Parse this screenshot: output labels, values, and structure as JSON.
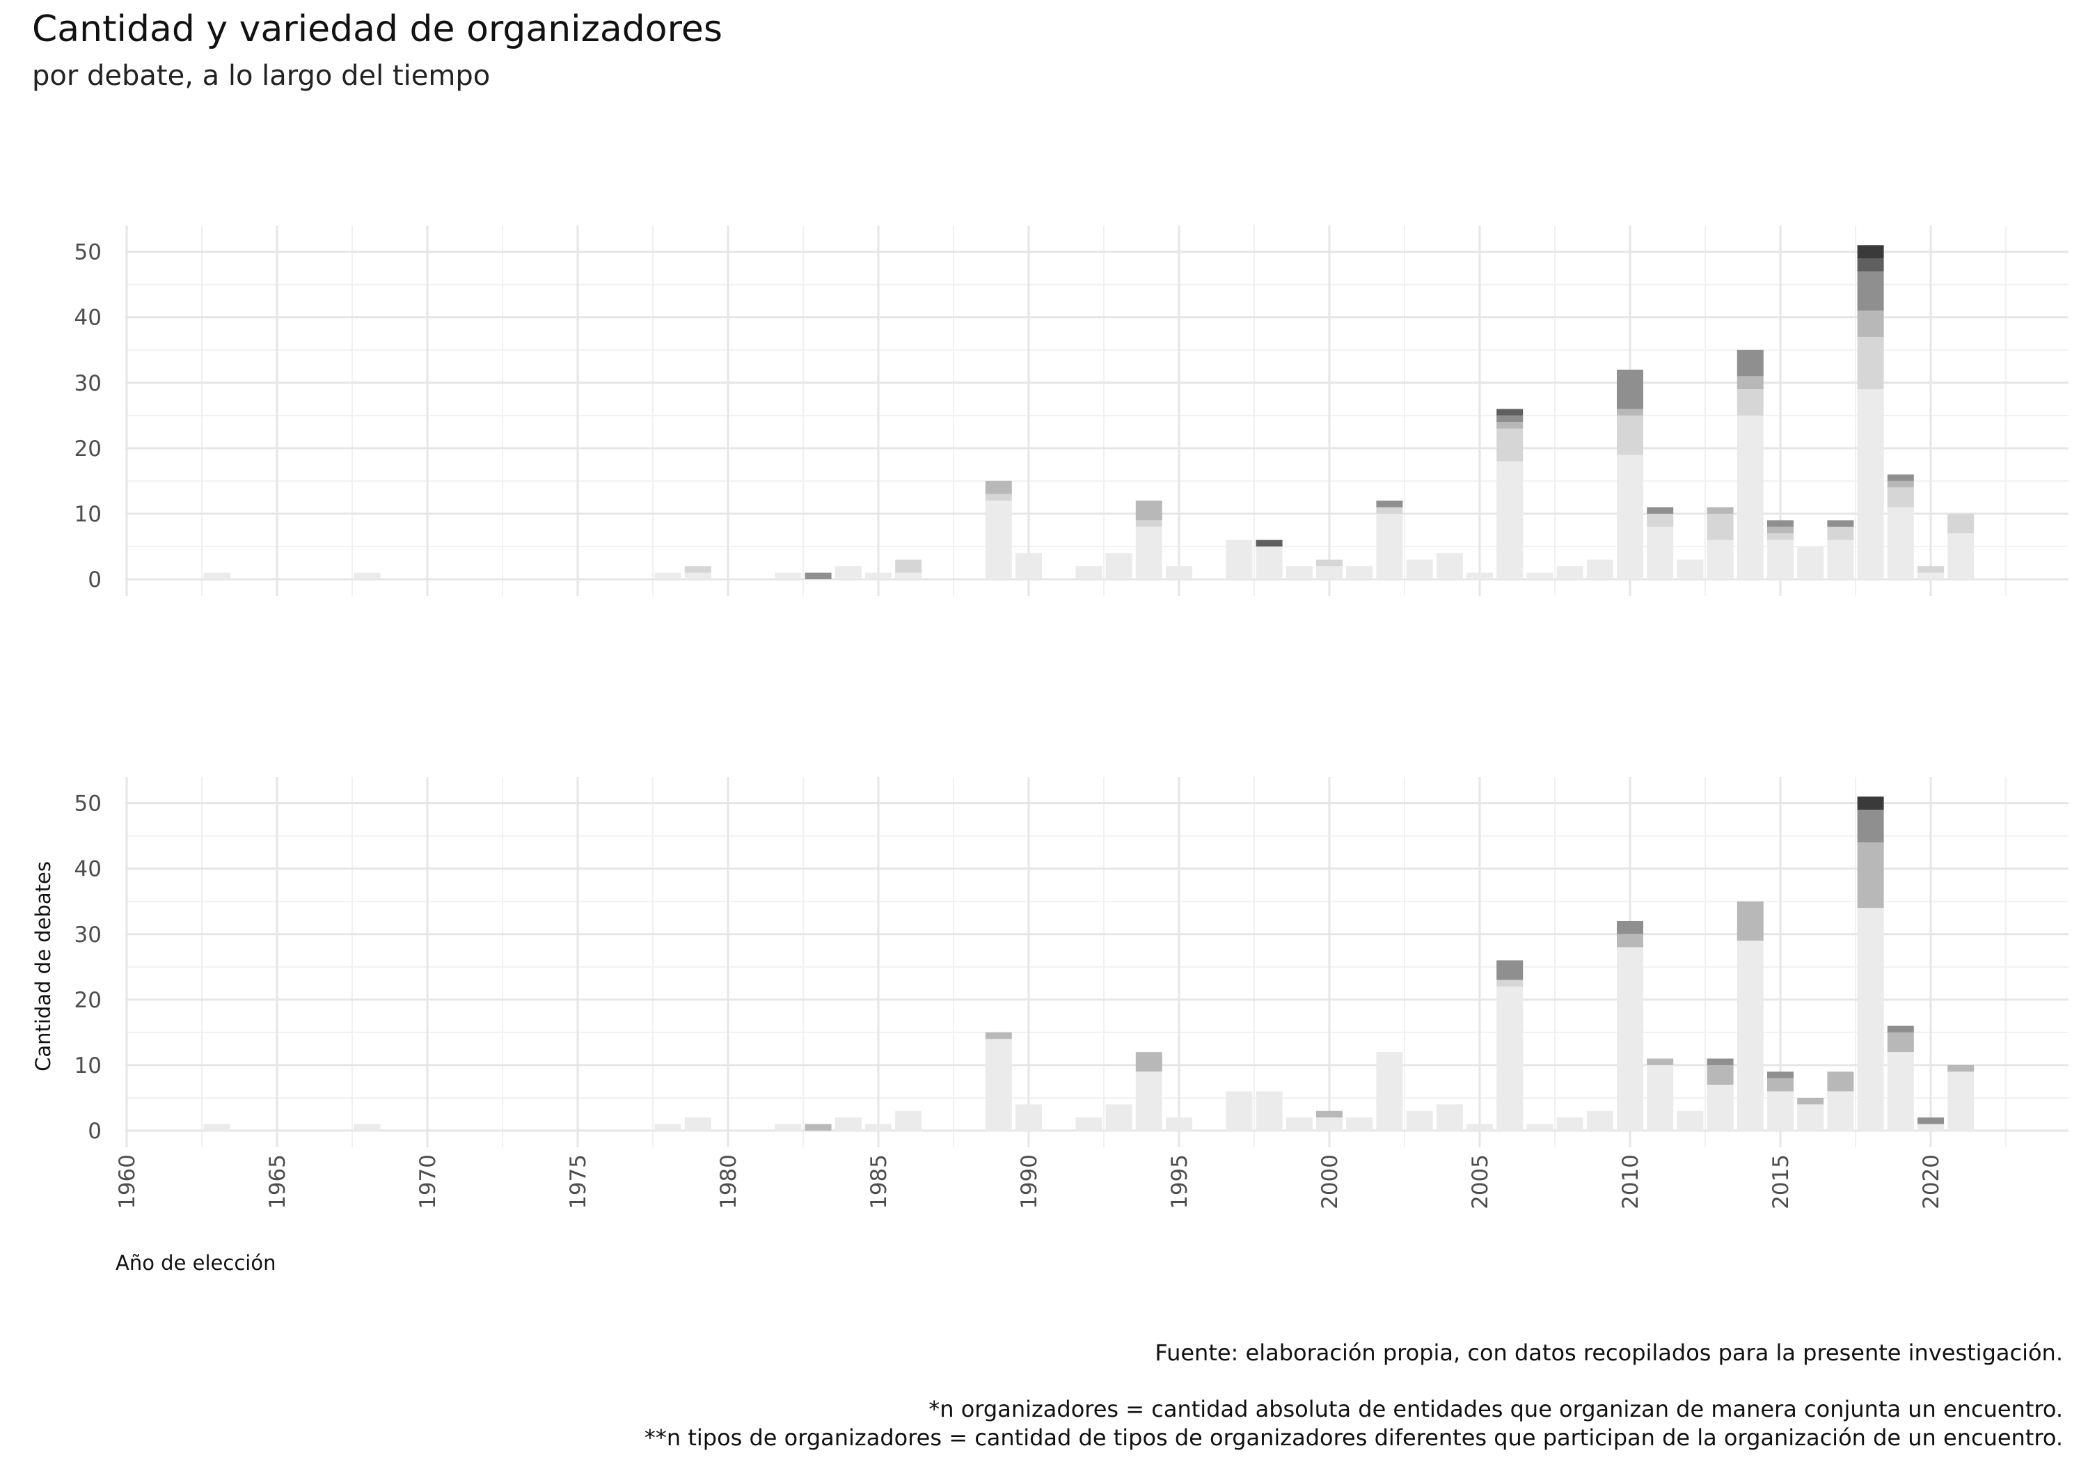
{
  "title": "Cantidad y variedad de organizadores",
  "subtitle": "por debate, a lo largo del tiempo",
  "captions": {
    "source": "Fuente: elaboración propia, con datos recopilados para la presente investigación.",
    "note1": "*n organizadores = cantidad absoluta de entidades que organizan de manera conjunta un encuentro.",
    "note2": "**n tipos de organizadores = cantidad de tipos de organizadores diferentes que participan de la organización de un encuentro."
  },
  "colors": {
    "grid_major": "#e6e6e6",
    "grid_minor": "#f1f1f1",
    "axis_text": "#4d4d4d",
    "level_fill": [
      "#ebebeb",
      "#d6d6d6",
      "#b8b8b8",
      "#8f8f8f",
      "#5f5f5f",
      "#3a3a3a"
    ]
  },
  "chart_data": [
    {
      "type": "bar",
      "stacked": true,
      "panel": "top",
      "description_basis": "stacked by number of organizers per debate",
      "xlim": [
        1960,
        2024
      ],
      "ylim": [
        0,
        54
      ],
      "yticks": [
        0,
        10,
        20,
        30,
        40,
        50
      ],
      "xlabel": "",
      "ylabel": "",
      "bars": [
        {
          "x": 1963,
          "segments": [
            1
          ]
        },
        {
          "x": 1968,
          "segments": [
            1
          ]
        },
        {
          "x": 1978,
          "segments": [
            1
          ]
        },
        {
          "x": 1979,
          "segments": [
            1,
            1
          ]
        },
        {
          "x": 1982,
          "segments": [
            1
          ]
        },
        {
          "x": 1983,
          "segments": [
            0,
            0,
            0,
            1
          ]
        },
        {
          "x": 1984,
          "segments": [
            2
          ]
        },
        {
          "x": 1985,
          "segments": [
            1
          ]
        },
        {
          "x": 1986,
          "segments": [
            1,
            2
          ]
        },
        {
          "x": 1989,
          "segments": [
            12,
            1,
            2
          ]
        },
        {
          "x": 1990,
          "segments": [
            4
          ]
        },
        {
          "x": 1992,
          "segments": [
            2
          ]
        },
        {
          "x": 1993,
          "segments": [
            4
          ]
        },
        {
          "x": 1994,
          "segments": [
            8,
            1,
            3
          ]
        },
        {
          "x": 1995,
          "segments": [
            2
          ]
        },
        {
          "x": 1997,
          "segments": [
            6
          ]
        },
        {
          "x": 1998,
          "segments": [
            5,
            0,
            0,
            0,
            1
          ]
        },
        {
          "x": 1999,
          "segments": [
            2
          ]
        },
        {
          "x": 2000,
          "segments": [
            2,
            1
          ]
        },
        {
          "x": 2001,
          "segments": [
            2
          ]
        },
        {
          "x": 2002,
          "segments": [
            10,
            1,
            0,
            1
          ]
        },
        {
          "x": 2003,
          "segments": [
            3
          ]
        },
        {
          "x": 2004,
          "segments": [
            4
          ]
        },
        {
          "x": 2005,
          "segments": [
            1
          ]
        },
        {
          "x": 2006,
          "segments": [
            18,
            5,
            1,
            1,
            1
          ]
        },
        {
          "x": 2007,
          "segments": [
            1
          ]
        },
        {
          "x": 2008,
          "segments": [
            2
          ]
        },
        {
          "x": 2009,
          "segments": [
            3
          ]
        },
        {
          "x": 2010,
          "segments": [
            19,
            6,
            1,
            6
          ]
        },
        {
          "x": 2011,
          "segments": [
            8,
            2,
            0,
            1
          ]
        },
        {
          "x": 2012,
          "segments": [
            3
          ]
        },
        {
          "x": 2013,
          "segments": [
            6,
            4,
            1
          ]
        },
        {
          "x": 2014,
          "segments": [
            25,
            4,
            2,
            4
          ]
        },
        {
          "x": 2015,
          "segments": [
            6,
            1,
            1,
            1
          ]
        },
        {
          "x": 2016,
          "segments": [
            5
          ]
        },
        {
          "x": 2017,
          "segments": [
            6,
            2,
            0,
            1
          ]
        },
        {
          "x": 2018,
          "segments": [
            29,
            8,
            4,
            6,
            2,
            2
          ]
        },
        {
          "x": 2019,
          "segments": [
            11,
            3,
            1,
            1
          ]
        },
        {
          "x": 2020,
          "segments": [
            1,
            1
          ]
        },
        {
          "x": 2021,
          "segments": [
            7,
            3
          ]
        }
      ]
    },
    {
      "type": "bar",
      "stacked": true,
      "panel": "bottom",
      "description_basis": "stacked by number of organizer types per debate",
      "xlim": [
        1960,
        2024
      ],
      "ylim": [
        0,
        54
      ],
      "yticks": [
        0,
        10,
        20,
        30,
        40,
        50
      ],
      "xticks": [
        1960,
        1965,
        1970,
        1975,
        1980,
        1985,
        1990,
        1995,
        2000,
        2005,
        2010,
        2015,
        2020
      ],
      "xlabel": "Año de elección",
      "ylabel": "Cantidad de debates",
      "bars": [
        {
          "x": 1963,
          "segments": [
            1
          ]
        },
        {
          "x": 1968,
          "segments": [
            1
          ]
        },
        {
          "x": 1978,
          "segments": [
            1
          ]
        },
        {
          "x": 1979,
          "segments": [
            2
          ]
        },
        {
          "x": 1982,
          "segments": [
            1
          ]
        },
        {
          "x": 1983,
          "segments": [
            0,
            0,
            1
          ]
        },
        {
          "x": 1984,
          "segments": [
            2
          ]
        },
        {
          "x": 1985,
          "segments": [
            1
          ]
        },
        {
          "x": 1986,
          "segments": [
            3
          ]
        },
        {
          "x": 1989,
          "segments": [
            14,
            0,
            1
          ]
        },
        {
          "x": 1990,
          "segments": [
            4
          ]
        },
        {
          "x": 1992,
          "segments": [
            2
          ]
        },
        {
          "x": 1993,
          "segments": [
            4
          ]
        },
        {
          "x": 1994,
          "segments": [
            9,
            0,
            3
          ]
        },
        {
          "x": 1995,
          "segments": [
            2
          ]
        },
        {
          "x": 1997,
          "segments": [
            6
          ]
        },
        {
          "x": 1998,
          "segments": [
            6
          ]
        },
        {
          "x": 1999,
          "segments": [
            2
          ]
        },
        {
          "x": 2000,
          "segments": [
            2,
            0,
            1
          ]
        },
        {
          "x": 2001,
          "segments": [
            2
          ]
        },
        {
          "x": 2002,
          "segments": [
            12
          ]
        },
        {
          "x": 2003,
          "segments": [
            3
          ]
        },
        {
          "x": 2004,
          "segments": [
            4
          ]
        },
        {
          "x": 2005,
          "segments": [
            1
          ]
        },
        {
          "x": 2006,
          "segments": [
            22,
            1,
            0,
            3
          ]
        },
        {
          "x": 2007,
          "segments": [
            1
          ]
        },
        {
          "x": 2008,
          "segments": [
            2
          ]
        },
        {
          "x": 2009,
          "segments": [
            3
          ]
        },
        {
          "x": 2010,
          "segments": [
            28,
            0,
            2,
            2
          ]
        },
        {
          "x": 2011,
          "segments": [
            10,
            0,
            1
          ]
        },
        {
          "x": 2012,
          "segments": [
            3
          ]
        },
        {
          "x": 2013,
          "segments": [
            7,
            0,
            3,
            1
          ]
        },
        {
          "x": 2014,
          "segments": [
            29,
            0,
            6
          ]
        },
        {
          "x": 2015,
          "segments": [
            6,
            0,
            2,
            1
          ]
        },
        {
          "x": 2016,
          "segments": [
            4,
            0,
            1
          ]
        },
        {
          "x": 2017,
          "segments": [
            6,
            0,
            3
          ]
        },
        {
          "x": 2018,
          "segments": [
            34,
            0,
            10,
            5,
            0,
            2
          ]
        },
        {
          "x": 2019,
          "segments": [
            12,
            0,
            3,
            1
          ]
        },
        {
          "x": 2020,
          "segments": [
            1,
            0,
            0,
            1
          ]
        },
        {
          "x": 2021,
          "segments": [
            9,
            0,
            1
          ]
        }
      ]
    }
  ]
}
